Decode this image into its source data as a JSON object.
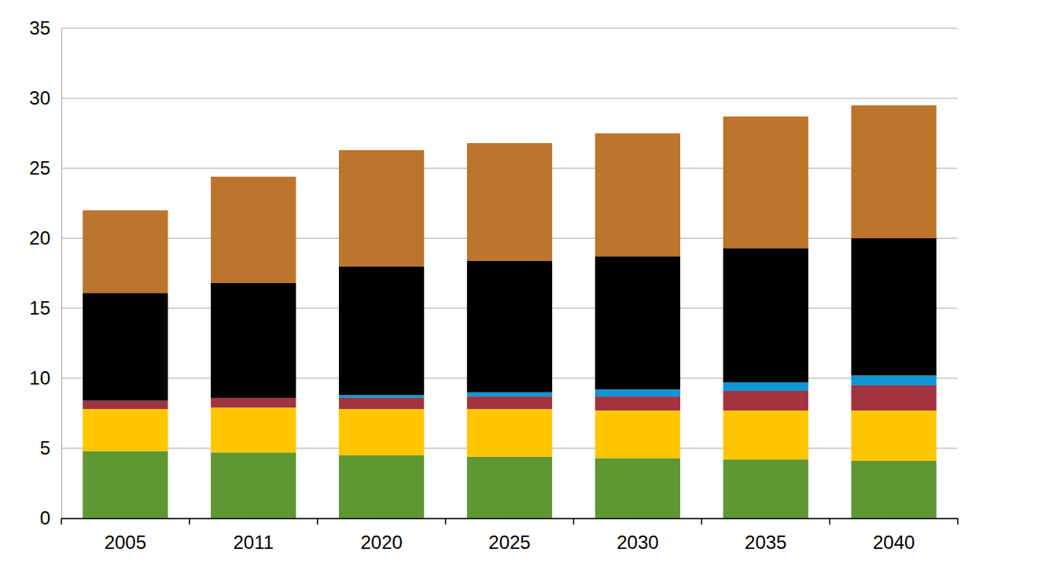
{
  "chart_data": {
    "type": "bar",
    "stacked": true,
    "grid": true,
    "categories": [
      "2005",
      "2011",
      "2020",
      "2025",
      "2030",
      "2035",
      "2040"
    ],
    "series": [
      {
        "color": "#5f9732",
        "values": [
          4.8,
          4.7,
          4.5,
          4.4,
          4.3,
          4.2,
          4.1
        ]
      },
      {
        "color": "#ffc600",
        "values": [
          3.0,
          3.2,
          3.3,
          3.4,
          3.4,
          3.5,
          3.6
        ]
      },
      {
        "color": "#a23340",
        "values": [
          0.6,
          0.7,
          0.8,
          0.9,
          1.0,
          1.4,
          1.8
        ]
      },
      {
        "color": "#0e96d6",
        "values": [
          0,
          0,
          0.2,
          0.3,
          0.5,
          0.6,
          0.7
        ]
      },
      {
        "color": "#000000",
        "values": [
          7.7,
          8.2,
          9.2,
          9.4,
          9.5,
          9.6,
          9.8
        ]
      },
      {
        "color": "#bd742c",
        "values": [
          5.9,
          7.6,
          8.3,
          8.4,
          8.8,
          9.4,
          9.5
        ]
      }
    ],
    "ylim": [
      0,
      35
    ],
    "yticks": [
      0,
      5,
      10,
      15,
      20,
      25,
      30,
      35
    ]
  }
}
